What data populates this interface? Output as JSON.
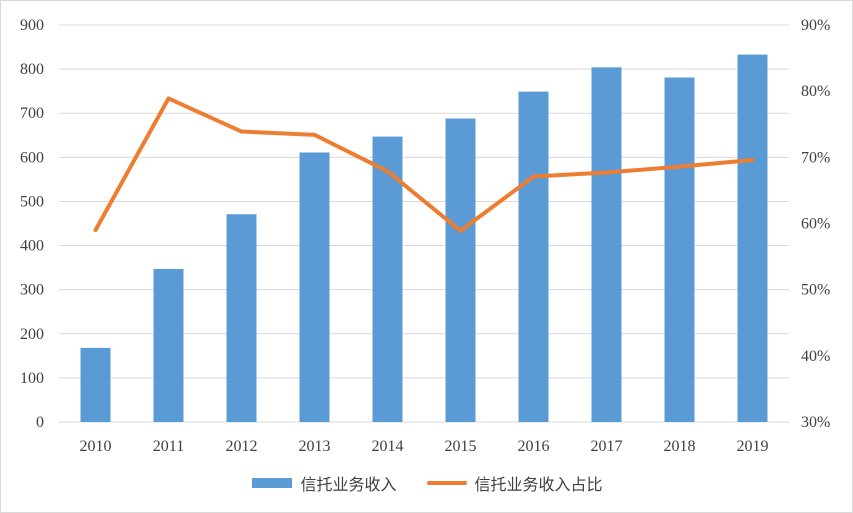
{
  "chart_data": {
    "type": "bar",
    "categories": [
      "2010",
      "2011",
      "2012",
      "2013",
      "2014",
      "2015",
      "2016",
      "2017",
      "2018",
      "2019"
    ],
    "series": [
      {
        "name": "信托业务收入",
        "type": "bar",
        "axis": "left",
        "color": "#5b9bd5",
        "values": [
          168,
          347,
          471,
          611,
          647,
          688,
          749,
          804,
          781,
          833
        ]
      },
      {
        "name": "信托业务收入占比",
        "type": "line",
        "axis": "right",
        "color": "#ed7d31",
        "values": [
          59.0,
          78.9,
          73.9,
          73.4,
          67.9,
          58.9,
          67.1,
          67.7,
          68.6,
          69.6
        ]
      }
    ],
    "y_left": {
      "min": 0,
      "max": 900,
      "step": 100,
      "ticks": [
        "0",
        "100",
        "200",
        "300",
        "400",
        "500",
        "600",
        "700",
        "800",
        "900"
      ]
    },
    "y_right": {
      "min": 30,
      "max": 90,
      "step": 10,
      "unit": "%",
      "ticks": [
        "30%",
        "40%",
        "50%",
        "60%",
        "70%",
        "80%",
        "90%"
      ]
    },
    "grid": true,
    "legend_position": "bottom"
  }
}
